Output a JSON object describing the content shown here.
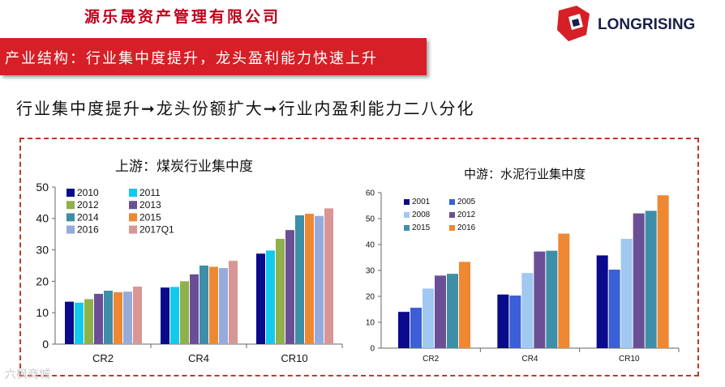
{
  "header": {
    "company_name": "源乐晟资产管理有限公司",
    "logo_text": "LONGRISING",
    "banner_title": "产业结构：行业集中度提升，龙头盈利能力快速上升",
    "subtitle": "行业集中度提升➞龙头份额扩大➞行业内盈利能力二八分化",
    "brand_red": "#d61f26"
  },
  "chart_data": [
    {
      "type": "bar",
      "title": "上游：煤炭行业集中度",
      "categories": [
        "CR2",
        "CR4",
        "CR10"
      ],
      "ylim": [
        0,
        50
      ],
      "yticks": [
        0,
        10,
        20,
        30,
        40,
        50
      ],
      "legend_position": "top-left",
      "series": [
        {
          "name": "2010",
          "color": "#0a0a8c",
          "values": [
            13.5,
            18.0,
            28.8
          ]
        },
        {
          "name": "2011",
          "color": "#12c9ee",
          "values": [
            13.2,
            18.2,
            29.8
          ]
        },
        {
          "name": "2012",
          "color": "#8fb04a",
          "values": [
            14.3,
            20.0,
            33.5
          ]
        },
        {
          "name": "2013",
          "color": "#6b4f96",
          "values": [
            16.0,
            22.2,
            36.3
          ]
        },
        {
          "name": "2014",
          "color": "#3f8ea8",
          "values": [
            17.0,
            25.0,
            41.0
          ]
        },
        {
          "name": "2015",
          "color": "#ee8833",
          "values": [
            16.5,
            24.6,
            41.5
          ]
        },
        {
          "name": "2016",
          "color": "#94abdc",
          "values": [
            16.7,
            24.2,
            40.8
          ]
        },
        {
          "name": "2017Q1",
          "color": "#d99694",
          "values": [
            18.3,
            26.5,
            43.2
          ]
        }
      ]
    },
    {
      "type": "bar",
      "title": "中游：水泥行业集中度",
      "categories": [
        "CR2",
        "CR4",
        "CR10"
      ],
      "ylim": [
        0,
        60
      ],
      "yticks": [
        0,
        10,
        20,
        30,
        40,
        50,
        60
      ],
      "legend_position": "top-left",
      "series": [
        {
          "name": "2001",
          "color": "#0a0a8c",
          "values": [
            14.0,
            20.7,
            35.8
          ]
        },
        {
          "name": "2005",
          "color": "#3a5fd6",
          "values": [
            15.6,
            20.3,
            30.3
          ]
        },
        {
          "name": "2008",
          "color": "#a0c8f0",
          "values": [
            23.0,
            29.0,
            42.2
          ]
        },
        {
          "name": "2012",
          "color": "#6b4f96",
          "values": [
            28.0,
            37.3,
            52.0
          ]
        },
        {
          "name": "2015",
          "color": "#3f8ea8",
          "values": [
            28.7,
            37.6,
            53.0
          ]
        },
        {
          "name": "2016",
          "color": "#ee8833",
          "values": [
            33.3,
            44.2,
            59.0
          ]
        }
      ]
    }
  ],
  "watermark": "六枫商城"
}
